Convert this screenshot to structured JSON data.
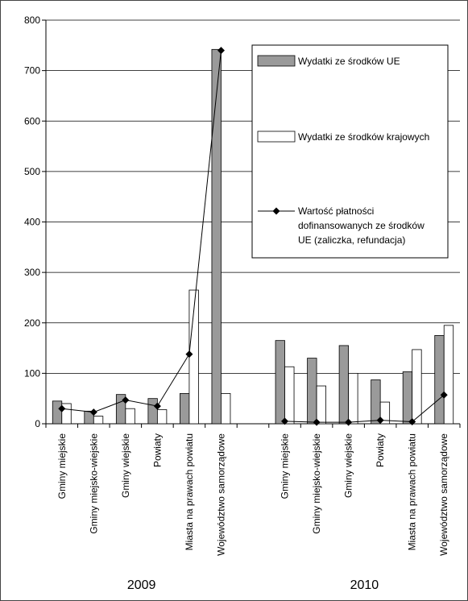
{
  "chart_data": {
    "type": "bar",
    "title": "",
    "xlabel": "",
    "ylabel": "",
    "ylim": [
      0,
      800
    ],
    "yticks": [
      0,
      100,
      200,
      300,
      400,
      500,
      600,
      700,
      800
    ],
    "grid": true,
    "legend_position": "top-right",
    "groups": [
      {
        "label": "2009",
        "categories": [
          "Gminy miejskie",
          "Gminy miejsko-wiejskie",
          "Gminy wiejskie",
          "Powiaty",
          "Miasta na prawach powiatu",
          "Województwo samorządowe"
        ]
      },
      {
        "label": "2010",
        "categories": [
          "Gminy miejskie",
          "Gminy miejsko-wiejskie",
          "Gminy wiejskie",
          "Powiaty",
          "Miasta na prawach powiatu",
          "Województwo samorządowe"
        ]
      }
    ],
    "series": [
      {
        "name": "Wydatki ze środków UE",
        "kind": "bar",
        "color": "#9a9a9a",
        "values": [
          45,
          25,
          58,
          50,
          60,
          742,
          165,
          130,
          155,
          87,
          103,
          175
        ]
      },
      {
        "name": "Wydatki ze środków krajowych",
        "kind": "bar",
        "color": "#ffffff",
        "values": [
          40,
          15,
          30,
          28,
          265,
          60,
          113,
          75,
          100,
          43,
          147,
          195
        ]
      },
      {
        "name": "Wartość płatności dofinansowanych ze środków UE (zaliczka, refundacja)",
        "name_lines": [
          "Wartość płatności",
          "dofinansowanych ze środków",
          "UE (zaliczka, refundacja)"
        ],
        "kind": "line",
        "color": "#000000",
        "values": [
          30,
          23,
          47,
          35,
          138,
          740,
          5,
          3,
          3,
          7,
          4,
          57
        ]
      }
    ]
  }
}
